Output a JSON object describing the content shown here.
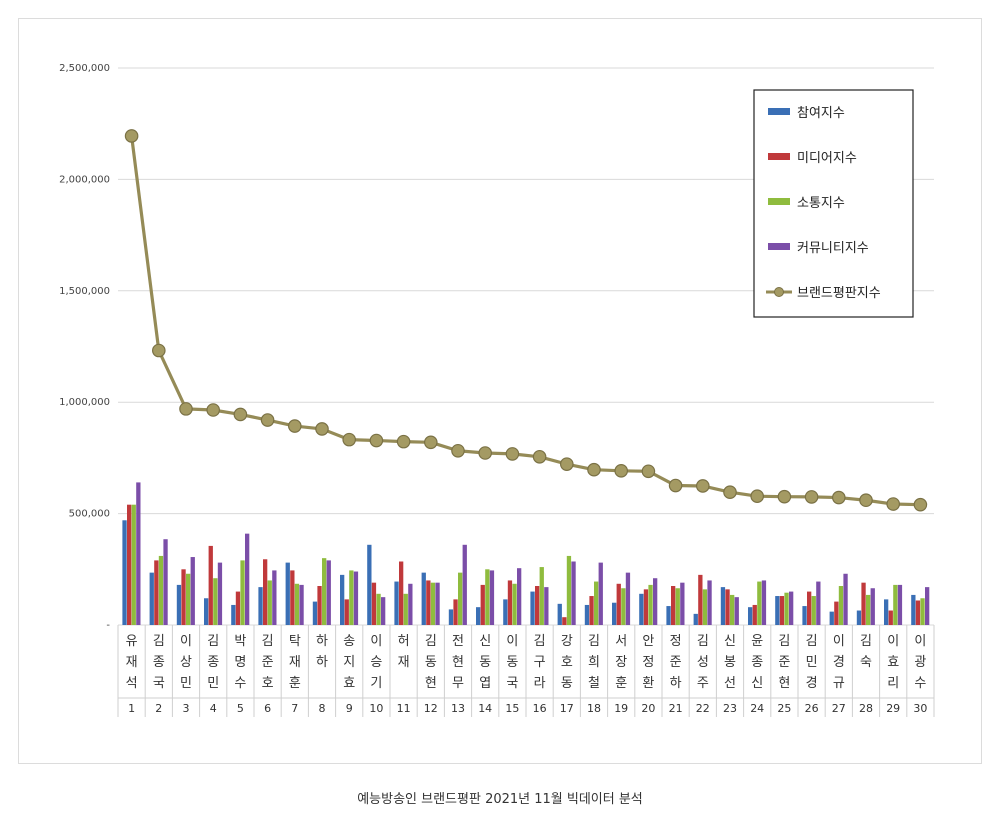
{
  "chart_data": {
    "type": "bar",
    "ylim": [
      0,
      2500000
    ],
    "yticks": [
      0,
      500000,
      1000000,
      1500000,
      2000000,
      2500000
    ],
    "ytick_labels": [
      "-",
      "500,000",
      "1,000,000",
      "1,500,000",
      "2,000,000",
      "2,500,000"
    ],
    "grid": true,
    "legend_position": "top-right",
    "categories": [
      "유재석",
      "김종국",
      "이상민",
      "김종민",
      "박명수",
      "김준호",
      "탁재훈",
      "하하",
      "송지효",
      "이승기",
      "허재",
      "김동현",
      "전현무",
      "신동엽",
      "이동국",
      "김구라",
      "강호동",
      "김희철",
      "서장훈",
      "안정환",
      "정준하",
      "김성주",
      "신봉선",
      "윤종신",
      "김준현",
      "김민경",
      "이경규",
      "김숙",
      "이효리",
      "이광수"
    ],
    "ranks": [
      "1",
      "2",
      "3",
      "4",
      "5",
      "6",
      "7",
      "8",
      "9",
      "10",
      "11",
      "12",
      "13",
      "14",
      "15",
      "16",
      "17",
      "18",
      "19",
      "20",
      "21",
      "22",
      "23",
      "24",
      "25",
      "26",
      "27",
      "28",
      "29",
      "30"
    ],
    "series": [
      {
        "name": "참여지수",
        "color": "#3a6fb5",
        "kind": "bar",
        "values": [
          470000,
          235000,
          180000,
          120000,
          90000,
          170000,
          280000,
          105000,
          225000,
          360000,
          195000,
          235000,
          70000,
          80000,
          115000,
          150000,
          95000,
          90000,
          100000,
          140000,
          85000,
          50000,
          170000,
          80000,
          130000,
          85000,
          60000,
          65000,
          115000,
          135000
        ]
      },
      {
        "name": "미디어지수",
        "color": "#c0393b",
        "kind": "bar",
        "values": [
          540000,
          290000,
          250000,
          355000,
          150000,
          295000,
          245000,
          175000,
          115000,
          190000,
          285000,
          200000,
          115000,
          180000,
          200000,
          175000,
          35000,
          130000,
          185000,
          160000,
          175000,
          225000,
          160000,
          90000,
          130000,
          150000,
          105000,
          190000,
          65000,
          110000
        ]
      },
      {
        "name": "소통지수",
        "color": "#8fbc3e",
        "kind": "bar",
        "values": [
          540000,
          310000,
          230000,
          210000,
          290000,
          200000,
          185000,
          300000,
          245000,
          140000,
          140000,
          190000,
          235000,
          250000,
          185000,
          260000,
          310000,
          195000,
          165000,
          180000,
          165000,
          160000,
          135000,
          195000,
          145000,
          130000,
          175000,
          135000,
          180000,
          120000
        ]
      },
      {
        "name": "커뮤니티지수",
        "color": "#7b4ea8",
        "kind": "bar",
        "values": [
          640000,
          385000,
          305000,
          280000,
          410000,
          245000,
          180000,
          290000,
          240000,
          125000,
          185000,
          190000,
          360000,
          245000,
          255000,
          170000,
          285000,
          280000,
          235000,
          210000,
          190000,
          200000,
          125000,
          200000,
          150000,
          195000,
          230000,
          165000,
          180000,
          170000
        ]
      },
      {
        "name": "브랜드평판지수",
        "color": "#958b57",
        "kind": "line",
        "values": [
          2195000,
          1232000,
          970000,
          965000,
          945000,
          920000,
          893000,
          880000,
          832000,
          828000,
          823000,
          820000,
          782000,
          772000,
          768000,
          755000,
          722000,
          697000,
          692000,
          690000,
          626000,
          624000,
          596000,
          578000,
          576000,
          575000,
          572000,
          560000,
          543000,
          540000
        ]
      }
    ]
  },
  "caption": "예능방송인 브랜드평판  2021년 11월 빅데이터 분석"
}
